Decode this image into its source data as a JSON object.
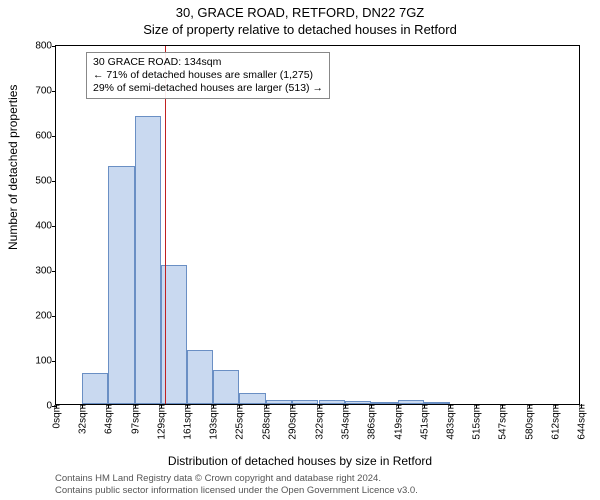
{
  "titles": {
    "main": "30, GRACE ROAD, RETFORD, DN22 7GZ",
    "sub": "Size of property relative to detached houses in Retford",
    "ylabel": "Number of detached properties",
    "xlabel": "Distribution of detached houses by size in Retford"
  },
  "attribution": {
    "line1": "Contains HM Land Registry data © Crown copyright and database right 2024.",
    "line2": "Contains public sector information licensed under the Open Government Licence v3.0."
  },
  "chart": {
    "type": "bar",
    "ylim": [
      0,
      800
    ],
    "ytick_step": 100,
    "x_tick_labels": [
      "0sqm",
      "32sqm",
      "64sqm",
      "97sqm",
      "129sqm",
      "161sqm",
      "193sqm",
      "225sqm",
      "258sqm",
      "290sqm",
      "322sqm",
      "354sqm",
      "386sqm",
      "419sqm",
      "451sqm",
      "483sqm",
      "515sqm",
      "547sqm",
      "580sqm",
      "612sqm",
      "644sqm"
    ],
    "x_tick_positions": [
      0,
      32,
      64,
      97,
      129,
      161,
      193,
      225,
      258,
      290,
      322,
      354,
      386,
      419,
      451,
      483,
      515,
      547,
      580,
      612,
      644
    ],
    "values": [
      0,
      68,
      530,
      640,
      310,
      120,
      75,
      25,
      8,
      10,
      8,
      6,
      5,
      10,
      3,
      0,
      0,
      0,
      0,
      0
    ],
    "bar_fill": "#c9d9f0",
    "bar_stroke": "#6a8fc4",
    "bar_width_ratio": 1.0,
    "background_color": "#ffffff",
    "reference_line_x": 134,
    "reference_line_color": "#c02020",
    "annotation": {
      "line1": "30 GRACE ROAD: 134sqm",
      "line2": "← 71% of detached houses are smaller (1,275)",
      "line3": "29% of semi-detached houses are larger (513) →",
      "border_color": "#888888",
      "bg_color": "#ffffff"
    }
  }
}
